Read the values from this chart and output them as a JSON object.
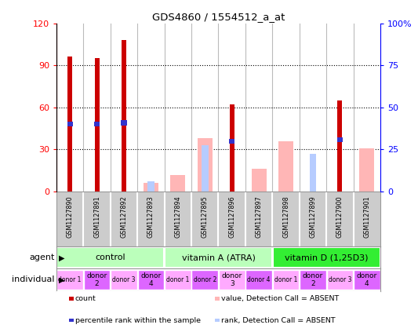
{
  "title": "GDS4860 / 1554512_a_at",
  "samples": [
    "GSM1127890",
    "GSM1127891",
    "GSM1127892",
    "GSM1127893",
    "GSM1127894",
    "GSM1127895",
    "GSM1127896",
    "GSM1127897",
    "GSM1127898",
    "GSM1127899",
    "GSM1127900",
    "GSM1127901"
  ],
  "count": [
    96,
    95,
    108,
    0,
    0,
    0,
    62,
    0,
    0,
    0,
    65,
    0
  ],
  "percentile_rank": [
    48,
    48,
    49,
    0,
    0,
    0,
    36,
    0,
    0,
    0,
    37,
    0
  ],
  "absent_value": [
    0,
    0,
    0,
    6,
    12,
    38,
    0,
    16,
    36,
    0,
    0,
    31
  ],
  "absent_rank": [
    0,
    0,
    0,
    7,
    0,
    33,
    0,
    0,
    0,
    27,
    0,
    0
  ],
  "count_color": "#cc0000",
  "percentile_color": "#3333cc",
  "absent_value_color": "#ffb6b6",
  "absent_rank_color": "#b6ccff",
  "ylim_left": [
    0,
    120
  ],
  "ylim_right": [
    0,
    100
  ],
  "yticks_left": [
    0,
    30,
    60,
    90,
    120
  ],
  "ytick_labels_left": [
    "0",
    "30",
    "60",
    "90",
    "120"
  ],
  "yticks_right": [
    0,
    25,
    50,
    75,
    100
  ],
  "ytick_labels_right": [
    "0",
    "25",
    "50",
    "75",
    "100%"
  ],
  "agent_groups": [
    {
      "label": "control",
      "start": 0,
      "end": 4,
      "color": "#bbffbb"
    },
    {
      "label": "vitamin A (ATRA)",
      "start": 4,
      "end": 8,
      "color": "#bbffbb"
    },
    {
      "label": "vitamin D (1,25D3)",
      "start": 8,
      "end": 12,
      "color": "#33ee33"
    }
  ],
  "individual_groups": [
    {
      "label": "donor 1",
      "start": 0,
      "end": 1,
      "color": "#ffaaff",
      "big": false
    },
    {
      "label": "donor\n2",
      "start": 1,
      "end": 2,
      "color": "#dd66ff",
      "big": true
    },
    {
      "label": "donor 3",
      "start": 2,
      "end": 3,
      "color": "#ffaaff",
      "big": false
    },
    {
      "label": "donor\n4",
      "start": 3,
      "end": 4,
      "color": "#dd66ff",
      "big": true
    },
    {
      "label": "donor 1",
      "start": 4,
      "end": 5,
      "color": "#ffaaff",
      "big": false
    },
    {
      "label": "donor 2",
      "start": 5,
      "end": 6,
      "color": "#dd66ff",
      "big": false
    },
    {
      "label": "donor\n3",
      "start": 6,
      "end": 7,
      "color": "#ffaaff",
      "big": true
    },
    {
      "label": "donor 4",
      "start": 7,
      "end": 8,
      "color": "#dd66ff",
      "big": false
    },
    {
      "label": "donor 1",
      "start": 8,
      "end": 9,
      "color": "#ffaaff",
      "big": false
    },
    {
      "label": "donor\n2",
      "start": 9,
      "end": 10,
      "color": "#dd66ff",
      "big": true
    },
    {
      "label": "donor 3",
      "start": 10,
      "end": 11,
      "color": "#ffaaff",
      "big": false
    },
    {
      "label": "donor\n4",
      "start": 11,
      "end": 12,
      "color": "#dd66ff",
      "big": true
    }
  ],
  "legend_items": [
    {
      "label": "count",
      "color": "#cc0000"
    },
    {
      "label": "percentile rank within the sample",
      "color": "#3333cc"
    },
    {
      "label": "value, Detection Call = ABSENT",
      "color": "#ffb6b6"
    },
    {
      "label": "rank, Detection Call = ABSENT",
      "color": "#b6ccff"
    }
  ],
  "sample_box_color": "#cccccc",
  "bar_width": 0.55
}
